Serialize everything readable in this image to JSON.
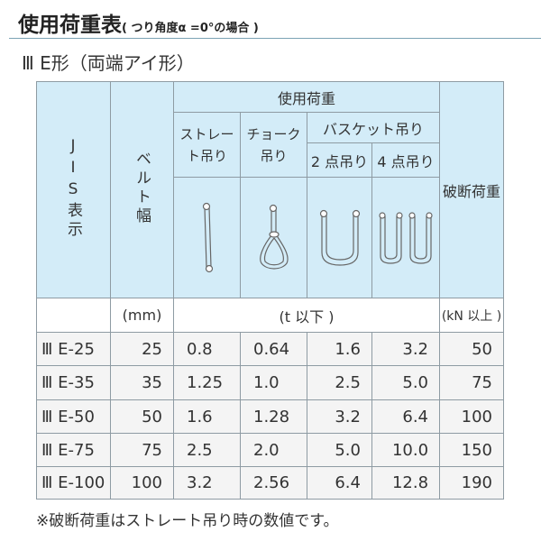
{
  "title": "使用荷重表",
  "title_note": "( つり角度α =0°の場合 )",
  "subtitle": "Ⅲ E形（両端アイ形）",
  "header": {
    "jis": "JIS表示",
    "width": "ベルト幅",
    "load": "使用荷重",
    "straight": "ストレート吊り",
    "choke": "チョーク吊り",
    "basket": "バスケット吊り",
    "two_point": "2 点吊り",
    "four_point": "4 点吊り",
    "break": "破断荷重"
  },
  "icons": [
    "straight-sling-icon",
    "choke-sling-icon",
    "basket-2point-icon",
    "basket-4point-icon"
  ],
  "units": {
    "width": "(mm)",
    "load": "(t 以下 )",
    "break": "(kN 以上 )"
  },
  "rows": [
    [
      "Ⅲ E-25",
      "25",
      "0.8",
      "0.64",
      "1.6",
      "3.2",
      "50"
    ],
    [
      "Ⅲ E-35",
      "35",
      "1.25",
      "1.0",
      "2.5",
      "5.0",
      "75"
    ],
    [
      "Ⅲ E-50",
      "50",
      "1.6",
      "1.28",
      "3.2",
      "6.4",
      "100"
    ],
    [
      "Ⅲ E-75",
      "75",
      "2.5",
      "2.0",
      "5.0",
      "10.0",
      "150"
    ],
    [
      "Ⅲ E-100",
      "100",
      "3.2",
      "2.56",
      "6.4",
      "12.8",
      "190"
    ]
  ],
  "footnote": "※破断荷重はストレート吊り時の数値です。",
  "colors": {
    "header_bg": "#d3ecf8",
    "row_bg": "#f4f4f4",
    "border": "#8e9ba3"
  }
}
